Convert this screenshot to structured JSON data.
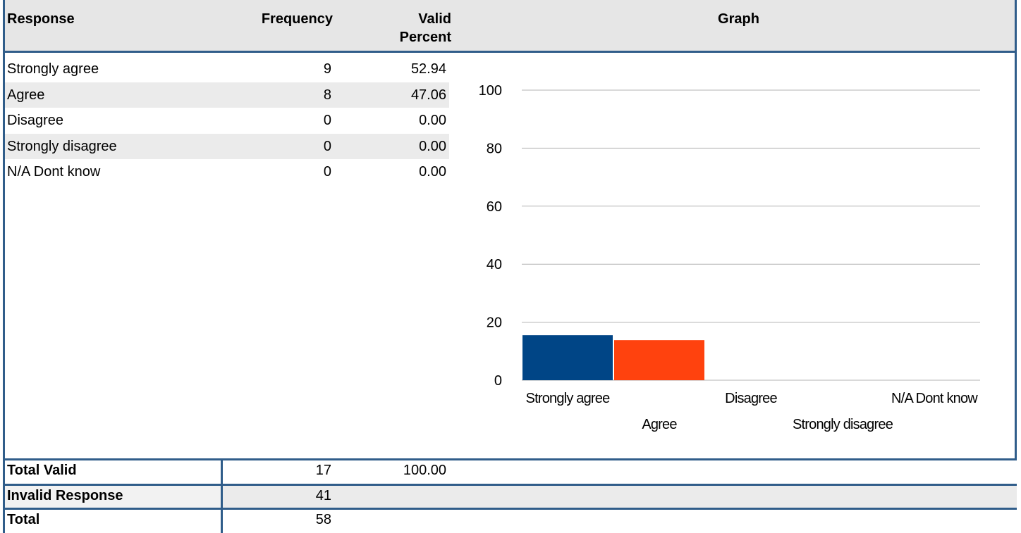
{
  "table": {
    "headers": [
      "Response",
      "Frequency",
      "Valid Percent",
      "Graph"
    ],
    "rows": [
      [
        "Strongly agree",
        "9",
        "52.94"
      ],
      [
        "Agree",
        "8",
        "47.06"
      ],
      [
        "Disagree",
        "0",
        "0.00"
      ],
      [
        "Strongly disagree",
        "0",
        "0.00"
      ],
      [
        "N/A Dont know",
        "0",
        "0.00"
      ]
    ],
    "footer": [
      [
        "Total Valid",
        "17",
        "100.00"
      ],
      [
        "Invalid Response",
        "41"
      ],
      [
        "Total",
        "58"
      ]
    ]
  },
  "chart_data": {
    "type": "bar",
    "categories": [
      "Strongly agree",
      "Agree",
      "Disagree",
      "Strongly disagree",
      "N/A Dont know"
    ],
    "values": [
      15.5,
      13.8,
      0,
      0,
      0
    ],
    "colors": [
      "#004586",
      "#ff420e",
      "#ffd320",
      "#579d1c",
      "#7e0021"
    ],
    "ylim": [
      0,
      100
    ],
    "yticks": [
      0,
      20,
      40,
      60,
      80,
      100
    ],
    "grid": true
  }
}
